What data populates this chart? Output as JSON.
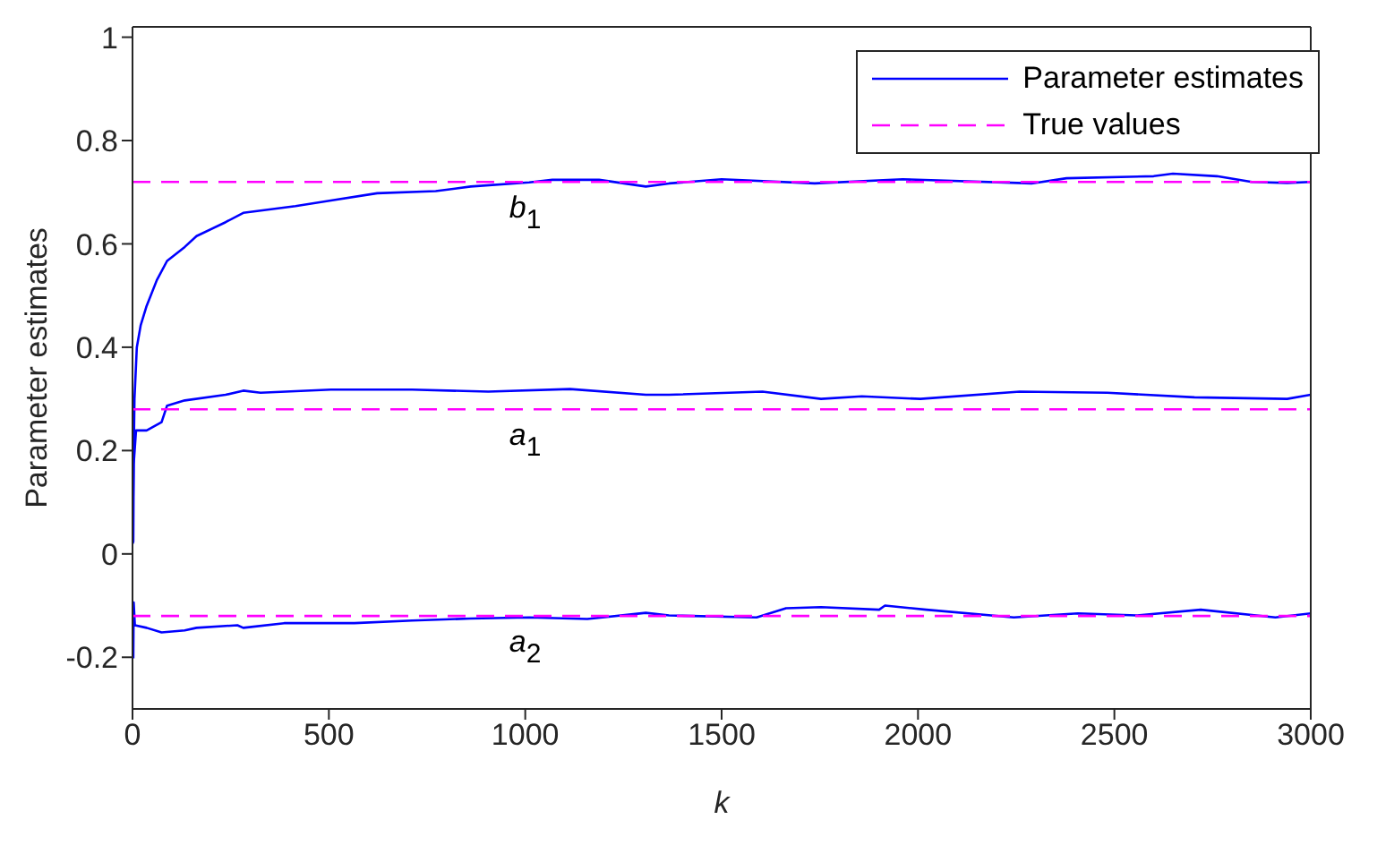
{
  "chart_data": {
    "type": "line",
    "xlabel": "k",
    "ylabel": "Parameter estimates",
    "xlim": [
      0,
      3000
    ],
    "xticks": [
      0,
      500,
      1000,
      1500,
      2000,
      2500,
      3000
    ],
    "ylim": [
      -0.3,
      1.02
    ],
    "yticks": [
      -0.2,
      0,
      0.2,
      0.4,
      0.6,
      0.8,
      1
    ],
    "grid": false,
    "legend": "top right",
    "marker": "none",
    "series": [
      {
        "name": "Parameter estimates",
        "color": "#0000ff",
        "line_style": "solid",
        "x": [
          0,
          5,
          11,
          21,
          36,
          62,
          88,
          133,
          163,
          237,
          282,
          415,
          505,
          623,
          772,
          861,
          1010,
          1069,
          1188,
          1307,
          1366,
          1500,
          1737,
          1961,
          2289,
          2378,
          2600,
          2649,
          2761,
          2850,
          2940,
          3000
        ],
        "values": [
          0.02,
          0.3,
          0.4,
          0.443,
          0.48,
          0.53,
          0.567,
          0.594,
          0.615,
          0.642,
          0.66,
          0.673,
          0.684,
          0.698,
          0.702,
          0.711,
          0.719,
          0.724,
          0.724,
          0.711,
          0.717,
          0.725,
          0.717,
          0.725,
          0.717,
          0.727,
          0.731,
          0.736,
          0.731,
          0.72,
          0.718,
          0.72
        ]
      },
      {
        "color": "#0000ff",
        "line_style": "solid",
        "x": [
          0,
          2,
          3,
          6,
          9,
          36,
          74,
          88,
          133,
          237,
          282,
          326,
          505,
          712,
          906,
          1114,
          1307,
          1366,
          1604,
          1753,
          1857,
          2006,
          2259,
          2482,
          2704,
          2940,
          3000
        ],
        "values": [
          0.02,
          0.024,
          0.174,
          0.206,
          0.239,
          0.239,
          0.255,
          0.287,
          0.297,
          0.308,
          0.316,
          0.312,
          0.318,
          0.318,
          0.314,
          0.319,
          0.308,
          0.308,
          0.314,
          0.3,
          0.305,
          0.3,
          0.314,
          0.312,
          0.303,
          0.3,
          0.308
        ]
      },
      {
        "color": "#0000ff",
        "line_style": "solid",
        "x": [
          2,
          3,
          6,
          36,
          74,
          133,
          163,
          267,
          282,
          386,
          565,
          712,
          861,
          1010,
          1158,
          1307,
          1366,
          1589,
          1664,
          1753,
          1901,
          1916,
          2021,
          2244,
          2407,
          2556,
          2720,
          2910,
          3000
        ],
        "values": [
          -0.202,
          -0.094,
          -0.138,
          -0.143,
          -0.152,
          -0.148,
          -0.143,
          -0.138,
          -0.143,
          -0.134,
          -0.134,
          -0.129,
          -0.125,
          -0.123,
          -0.126,
          -0.114,
          -0.119,
          -0.123,
          -0.105,
          -0.103,
          -0.108,
          -0.1,
          -0.108,
          -0.123,
          -0.115,
          -0.119,
          -0.108,
          -0.123,
          -0.115
        ]
      },
      {
        "name": "True values",
        "color": "#ff00ff",
        "line_style": "dashed",
        "x": [
          0,
          3000
        ],
        "values": [
          0.72,
          0.72
        ]
      },
      {
        "color": "#ff00ff",
        "line_style": "dashed",
        "x": [
          0,
          3000
        ],
        "values": [
          0.28,
          0.28
        ]
      },
      {
        "color": "#ff00ff",
        "line_style": "dashed",
        "x": [
          0,
          3000
        ],
        "values": [
          -0.12,
          -0.12
        ]
      }
    ],
    "annotations": [
      "b$_{1}$",
      "a$_{1}$",
      "a$_{2}$"
    ]
  }
}
